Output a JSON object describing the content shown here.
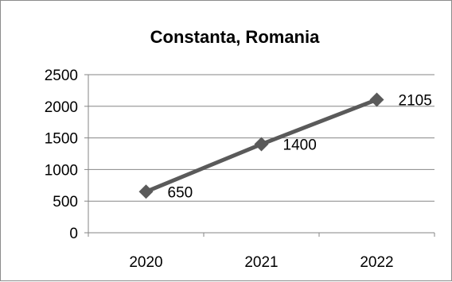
{
  "chart_data": {
    "type": "line",
    "title": "Constanta, Romania",
    "categories": [
      "2020",
      "2021",
      "2022"
    ],
    "series": [
      {
        "values": [
          650,
          1400,
          2105
        ],
        "color": "#5a5a5a",
        "marker": "diamond"
      }
    ],
    "data_labels": [
      "650",
      "1400",
      "2105"
    ],
    "ylim": [
      0,
      2500
    ],
    "yticks": [
      0,
      500,
      1000,
      1500,
      2000,
      2500
    ],
    "ytick_labels": [
      "0",
      "500",
      "1000",
      "1500",
      "2000",
      "2500"
    ],
    "grid": true,
    "legend": "none",
    "xlabel": "",
    "ylabel": ""
  }
}
